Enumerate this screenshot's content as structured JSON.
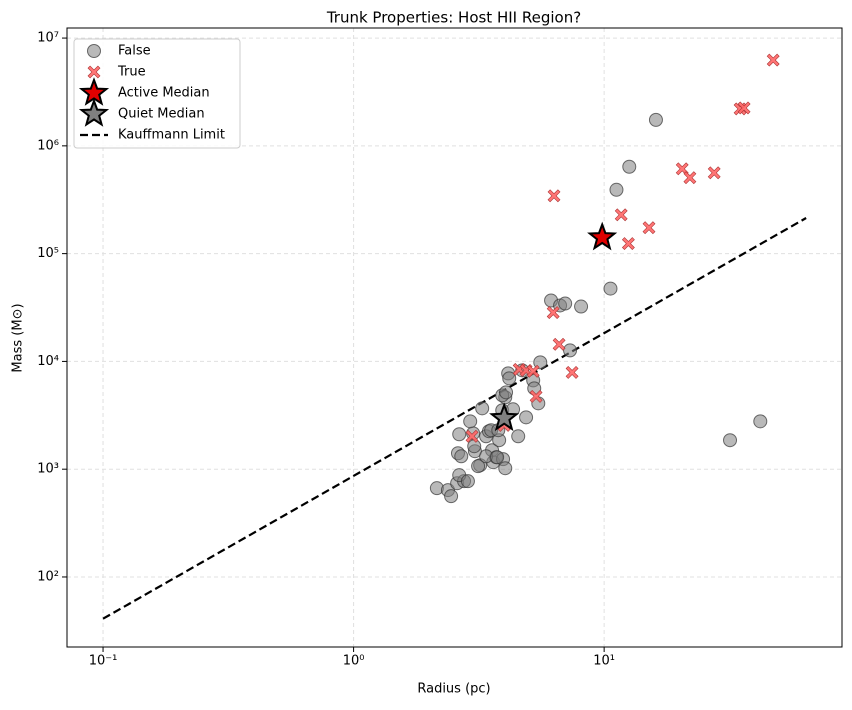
{
  "chart_data": {
    "type": "scatter",
    "title": "Trunk Properties: Host HII Region?",
    "x_label": "Radius (pc)",
    "y_label": "Mass (M⊙)",
    "log_x": true,
    "log_y": true,
    "grid": true,
    "legend": "upper left",
    "xlim": [
      0.0718,
      89
    ],
    "ylim": [
      22.4,
      12400000
    ],
    "xticks": [
      {
        "value": 0.1,
        "label": "10⁻¹"
      },
      {
        "value": 1,
        "label": "10⁰"
      },
      {
        "value": 10,
        "label": "10¹"
      }
    ],
    "yticks": [
      {
        "value": 100,
        "label": "10²"
      },
      {
        "value": 1000,
        "label": "10³"
      },
      {
        "value": 10000,
        "label": "10⁴"
      },
      {
        "value": 100000,
        "label": "10⁵"
      },
      {
        "value": 1000000,
        "label": "10⁶"
      },
      {
        "value": 10000000,
        "label": "10⁷"
      }
    ],
    "series": [
      {
        "name": "False",
        "marker": "circle",
        "color": "#808080",
        "x": [
          2.15,
          2.38,
          2.45,
          2.59,
          2.76,
          2.61,
          2.69,
          2.64,
          2.64,
          2.86,
          3.0,
          3.05,
          3.2,
          3.03,
          3.14,
          3.26,
          3.38,
          3.47,
          3.54,
          3.61,
          3.57,
          3.71,
          3.81,
          3.95,
          4.03,
          4.03,
          3.92,
          3.92,
          4.06,
          4.14,
          4.18,
          4.33,
          4.54,
          4.71,
          4.88,
          5.21,
          5.26,
          5.46,
          5.56,
          6.14,
          6.67,
          6.99,
          7.31,
          8.09,
          10.6,
          11.2,
          12.6,
          16.1,
          31.8,
          42.0,
          2.92,
          3.78,
          3.38,
          3.74
        ],
        "y": [
          667,
          640,
          562,
          741,
          774,
          1406,
          1318,
          2110,
          880,
          774,
          2150,
          1468,
          1089,
          1633,
          1067,
          3670,
          2020,
          2250,
          2300,
          1161,
          1500,
          1291,
          1858,
          1240,
          1021,
          4645,
          3516,
          4842,
          5164,
          7745,
          6966,
          3597,
          2020,
          8260,
          3027,
          6668,
          5623,
          4084,
          9795,
          36730,
          33040,
          34430,
          12650,
          32290,
          47400,
          391000,
          640000,
          1742000,
          1858,
          2780,
          2780,
          2300,
          1318,
          1291
        ]
      },
      {
        "name": "True",
        "marker": "x",
        "color": "#ff6666",
        "x": [
          6.31,
          6.26,
          6.61,
          7.45,
          5.35,
          4.58,
          4.88,
          5.21,
          2.97,
          3.99,
          11.7,
          12.5,
          15.1,
          20.5,
          22.0,
          27.5,
          34.9,
          36.2,
          47.3
        ],
        "y": [
          344000,
          28400,
          14400,
          7900,
          4740,
          8430,
          8260,
          8090,
          2020,
          2550,
          229000,
          124000,
          174000,
          612000,
          506000,
          562000,
          2200000,
          2250000,
          6250000
        ]
      },
      {
        "name": "Active Median",
        "marker": "star",
        "color": "#e00000",
        "x": [
          9.82
        ],
        "y": [
          141000
        ]
      },
      {
        "name": "Quiet Median",
        "marker": "star",
        "color": "#808080",
        "x": [
          3.99
        ],
        "y": [
          2970
        ]
      },
      {
        "name": "Kauffmann Limit",
        "marker": "dashed-line",
        "color": "#000000",
        "x": [
          0.1,
          64
        ],
        "y": [
          41,
          214000
        ]
      }
    ]
  }
}
